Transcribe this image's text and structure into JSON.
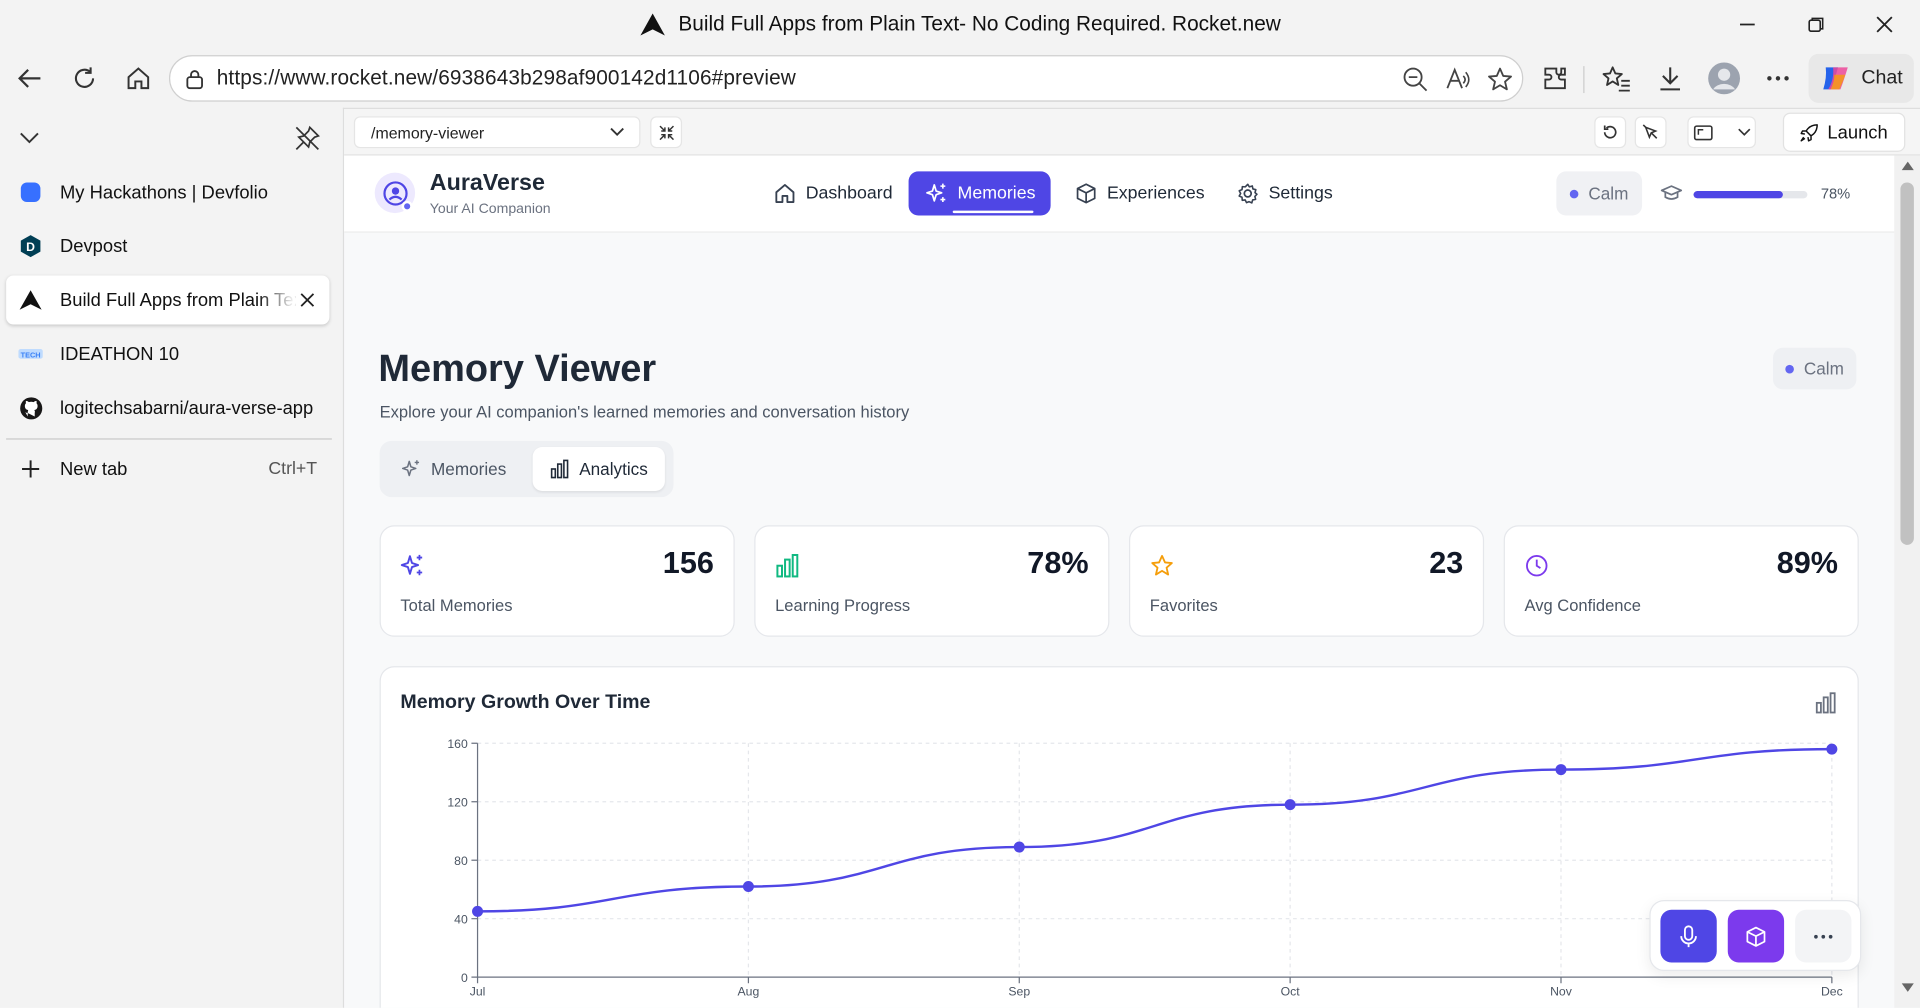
{
  "window": {
    "title": "Build Full Apps from Plain Text- No Coding Required. Rocket.new"
  },
  "browser": {
    "url": "https://www.rocket.new/6938643b298af900142d1106#preview",
    "chat_label": "Chat"
  },
  "tabs": [
    {
      "label": "My Hackathons | Devfolio",
      "icon": "devfolio-icon"
    },
    {
      "label": "Devpost",
      "icon": "devpost-icon"
    },
    {
      "label": "Build Full Apps from Plain Text",
      "icon": "rocket-icon",
      "active": true
    },
    {
      "label": "IDEATHON 10",
      "icon": "ideathon-icon"
    },
    {
      "label": "logitechsabarni/aura-verse-app",
      "icon": "github-icon"
    }
  ],
  "new_tab": {
    "label": "New tab",
    "shortcut": "Ctrl+T"
  },
  "preview": {
    "route": "/memory-viewer",
    "launch_label": "Launch"
  },
  "app": {
    "name": "AuraVerse",
    "tagline": "Your AI Companion",
    "nav": [
      {
        "label": "Dashboard",
        "icon": "home-icon"
      },
      {
        "label": "Memories",
        "icon": "sparkles-icon",
        "active": true
      },
      {
        "label": "Experiences",
        "icon": "cube-icon"
      },
      {
        "label": "Settings",
        "icon": "gear-icon"
      }
    ],
    "mood": "Calm",
    "progress_percent": 78,
    "progress_label": "78%",
    "accent": "#4f46e5"
  },
  "page": {
    "title": "Memory Viewer",
    "subtitle": "Explore your AI companion's learned memories and conversation history",
    "mood": "Calm",
    "tabs": [
      {
        "label": "Memories",
        "icon": "sparkles-icon"
      },
      {
        "label": "Analytics",
        "icon": "bar-chart-icon",
        "active": true
      }
    ]
  },
  "stats": [
    {
      "value": "156",
      "label": "Total Memories",
      "icon": "sparkles-icon",
      "color": "#4f46e5"
    },
    {
      "value": "78%",
      "label": "Learning Progress",
      "icon": "bar-chart-icon",
      "color": "#10b981"
    },
    {
      "value": "23",
      "label": "Favorites",
      "icon": "star-icon",
      "color": "#f59e0b"
    },
    {
      "value": "89%",
      "label": "Avg Confidence",
      "icon": "clock-icon",
      "color": "#7c3aed"
    }
  ],
  "chart_card": {
    "title": "Memory Growth Over Time"
  },
  "chart_data": {
    "type": "line",
    "categories": [
      "Jul",
      "Aug",
      "Sep",
      "Oct",
      "Nov",
      "Dec"
    ],
    "series": [
      {
        "values": [
          45,
          62,
          89,
          118,
          142,
          156
        ]
      }
    ],
    "yticks": [
      0,
      40,
      80,
      120,
      160
    ],
    "ylim": [
      0,
      160
    ],
    "grid": true,
    "color": "#4f46e5"
  }
}
